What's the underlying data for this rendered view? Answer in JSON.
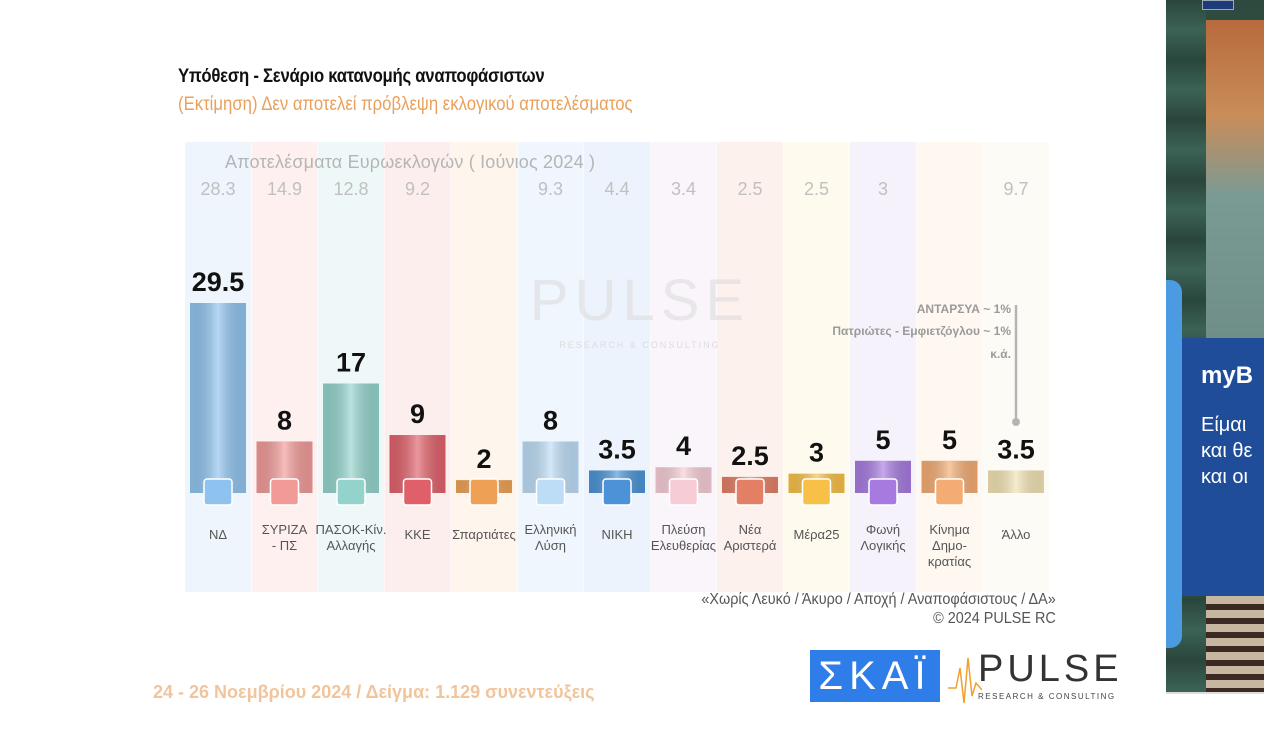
{
  "chart_data": {
    "type": "bar",
    "title": "Υπόθεση - Σενάριο κατανομής αναποφάσιστων",
    "subtitle": "(Εκτίμηση)   Δεν αποτελεί πρόβλεψη εκλογικού αποτελέσματος",
    "xlabel": "",
    "ylabel": "",
    "ylim": [
      0,
      30
    ],
    "grid": false,
    "categories": [
      "ΝΔ",
      "ΣΥΡΙΖΑ - ΠΣ",
      "ΠΑΣΟΚ-Κίν. Αλλαγής",
      "ΚΚΕ",
      "Σπαρτιάτες",
      "Ελληνική Λύση",
      "ΝΙΚΗ",
      "Πλεύση Ελευθερίας",
      "Νέα Αριστερά",
      "Μέρα25",
      "Φωνή Λογικής",
      "Κίνημα Δημο-κρατίας",
      "Άλλο"
    ],
    "category_lines": [
      [
        "ΝΔ"
      ],
      [
        "ΣΥΡΙΖΑ",
        "- ΠΣ"
      ],
      [
        "ΠΑΣΟΚ-Κίν.",
        "Αλλαγής"
      ],
      [
        "ΚΚΕ"
      ],
      [
        "Σπαρτιάτες"
      ],
      [
        "Ελληνική",
        "Λύση"
      ],
      [
        "ΝΙΚΗ"
      ],
      [
        "Πλεύση",
        "Ελευθερίας"
      ],
      [
        "Νέα",
        "Αριστερά"
      ],
      [
        "Μέρα25"
      ],
      [
        "Φωνή",
        "Λογικής"
      ],
      [
        "Κίνημα",
        "Δημο-",
        "κρατίας"
      ],
      [
        "Άλλο"
      ]
    ],
    "series": [
      {
        "name": "Εκτίμηση",
        "values": [
          29.5,
          8,
          17,
          9,
          2,
          8,
          3.5,
          4,
          2.5,
          3,
          5,
          5,
          3.5
        ],
        "labels": [
          "29.5",
          "8",
          "17",
          "9",
          "2",
          "8",
          "3.5",
          "4",
          "2.5",
          "3",
          "5",
          "5",
          "3.5"
        ]
      },
      {
        "name": "Αποτελέσματα Ευρωεκλογών ( Ιούνιος 2024 )",
        "values": [
          28.3,
          14.9,
          12.8,
          9.2,
          null,
          9.3,
          4.4,
          3.4,
          2.5,
          2.5,
          3,
          null,
          9.7
        ],
        "labels": [
          "28.3",
          "14.9",
          "12.8",
          "9.2",
          "",
          "9.3",
          "4.4",
          "3.4",
          "2.5",
          "2.5",
          "3",
          "",
          "9.7"
        ]
      }
    ],
    "bar_colors": [
      "#8fc3ef",
      "#f19a98",
      "#93d3cc",
      "#e0606a",
      "#eea155",
      "#bddcf5",
      "#4b93d6",
      "#f6cdd6",
      "#e27f64",
      "#f7c046",
      "#a77ae0",
      "#f3ac72",
      "#f2e3b4"
    ],
    "column_tints": [
      "#eef5fd",
      "#fdf0ef",
      "#eef8f8",
      "#fdeeee",
      "#fef5ec",
      "#f0f6fd",
      "#edf3fc",
      "#faf5fa",
      "#fdf1ee",
      "#fefbee",
      "#f5f2fb",
      "#fef8f1",
      "#fdfbf5"
    ],
    "euro_header": "Αποτελέσματα Ευρωεκλογών  ( Ιούνιος 2024 )",
    "annotation": [
      "ΑΝΤΑΡΣΥΑ ~ 1%",
      "Πατριώτες - Εμφιετζόγλου ~ 1%",
      "κ.ά."
    ],
    "logo_icons": [
      "nd-logo-icon",
      "syriza-logo-icon",
      "pasok-logo-icon",
      "kke-logo-icon",
      "spartiates-logo-icon",
      "elliniki-lysi-logo-icon",
      "niki-logo-icon",
      "plefsi-logo-icon",
      "nea-aristera-logo-icon",
      "mera25-logo-icon",
      "foni-logikis-logo-icon",
      "kinima-dimokratias-logo-icon",
      "allo-icon"
    ]
  },
  "footer": {
    "exclusion_note": "«Χωρίς Λευκό / Άκυρο / Αποχή / Αναποφάσιστους / ΔΑ»",
    "copyright": "©  2024  PULSE RC",
    "date_sample": "24 - 26 Νοεμβρίου 2024  /  Δείγμα:  1.129 συνεντεύξεις",
    "skai_logo": "ΣΚΑΪ",
    "pulse_logo": "PULSE",
    "pulse_sub": "RESEARCH & CONSULTING",
    "watermark": "PULSE",
    "watermark_sub": "RESEARCH & CONSULTING"
  },
  "ad": {
    "title": "myB",
    "lines": [
      "Είμαι",
      "και θε",
      "και οι"
    ]
  }
}
